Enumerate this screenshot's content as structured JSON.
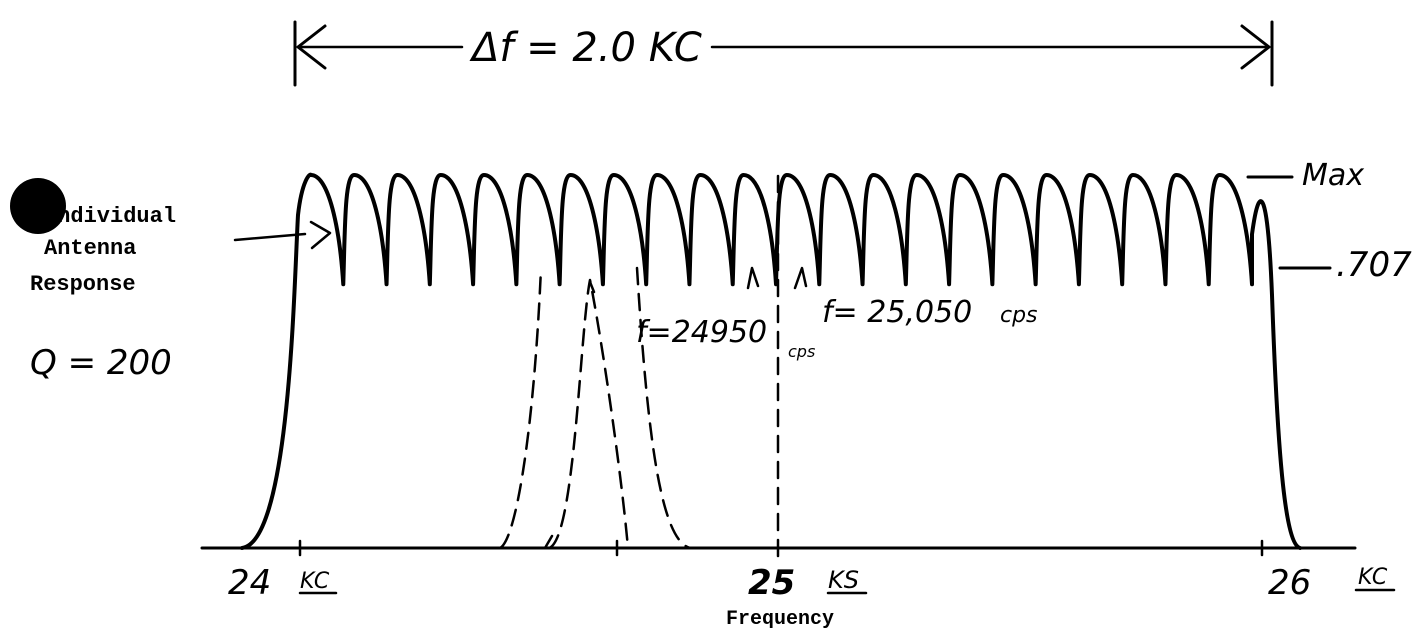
{
  "bandwidth_label": "Δf = 2.0 KC",
  "level_max": "Max",
  "level_707": ".707",
  "side_note": {
    "line1": "Individual",
    "line2": "Antenna",
    "line3": "Response",
    "q_label": "Q = 200"
  },
  "freq_low_label": "f=24950",
  "freq_low_unit": "cps",
  "freq_high_label": "f= 25,050",
  "freq_high_unit": "cps",
  "x_ticks": [
    {
      "value": "24",
      "unit": "KC"
    },
    {
      "value": "25",
      "unit": "KS"
    },
    {
      "value": "26",
      "unit": "KC"
    }
  ],
  "x_axis_label": "Frequency",
  "response": {
    "lobes": 22,
    "peak_level": 1.0,
    "dip_level": 0.707
  },
  "dashed_curves": 3
}
